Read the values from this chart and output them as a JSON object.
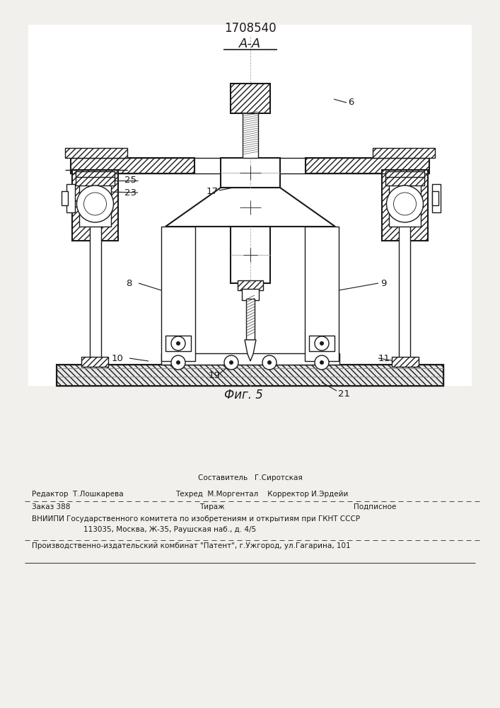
{
  "patent_number": "1708540",
  "section_label": "А-А",
  "fig_label": "Фиг. 5",
  "bg_color": "#f2f0ec",
  "line_color": "#1a1a1a",
  "footer_line1_center": "Составитель   Г.Сиротская",
  "footer_line2_left": "Редактор  Т.Лошкарева",
  "footer_line2_right": "Техред  М.Моргентал    Корректор И.Эрдейи",
  "footer_line3_left": "Заказ 388",
  "footer_line3_center": "Тираж",
  "footer_line3_right": "Подписное",
  "footer_line4": "ВНИИПИ Государственного комитета по изобретениям и открытиям при ГКНТ СССР",
  "footer_line5": "113035, Москва, Ж-35, Раушская наб., д. 4/5",
  "footer_line6": "Производственно-издательский комбинат \"Патент\", г.Ужгород, ул.Гагарина, 101"
}
